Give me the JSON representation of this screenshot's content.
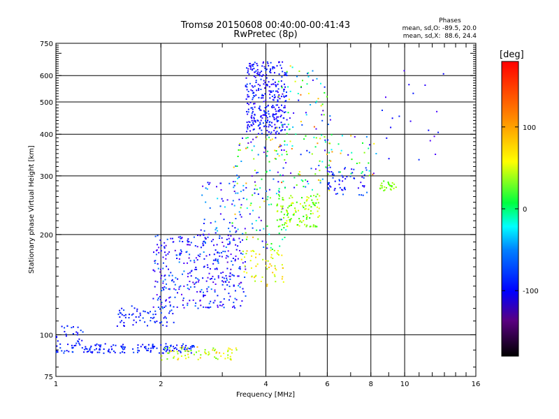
{
  "chart_data": {
    "type": "scatter",
    "title": "Tromsø 20150608 00:40:00-00:41:43",
    "subtitle": "RwPretec (8p)",
    "xlabel": "Frequency [MHz]",
    "ylabel": "Stationary phase Virtual Height [km]",
    "x_scale": "log",
    "y_scale": "log",
    "xlim": [
      1,
      16
    ],
    "ylim": [
      75,
      750
    ],
    "x_ticks": [
      1,
      2,
      4,
      6,
      8,
      10,
      16
    ],
    "y_ticks": [
      75,
      100,
      200,
      300,
      400,
      500,
      600,
      750
    ],
    "grid": true,
    "stats": {
      "title": "Phases",
      "line_o": "mean, sd,O: -89.5, 20.0",
      "line_x": "mean, sd,X:  88.6, 24.4"
    },
    "colorbar": {
      "label": "[deg]",
      "range": [
        -180,
        180
      ],
      "ticks": [
        "100",
        "0",
        "-100"
      ],
      "tick_values": [
        100,
        0,
        -100
      ],
      "colormap": "rainbow"
    },
    "clusters": [
      {
        "name": "",
        "x": [
          1.0,
          2.5
        ],
        "y": [
          88,
          94
        ],
        "phase": [
          -110,
          -80
        ],
        "n": 160
      },
      {
        "name": "",
        "x": [
          1.0,
          1.2
        ],
        "y": [
          94,
          108
        ],
        "phase": [
          -110,
          -80
        ],
        "n": 25
      },
      {
        "name": "",
        "x": [
          2.0,
          3.3
        ],
        "y": [
          84,
          92
        ],
        "phase": [
          60,
          130
        ],
        "n": 70
      },
      {
        "name": "",
        "x": [
          1.5,
          2.2
        ],
        "y": [
          106,
          122
        ],
        "phase": [
          -110,
          -80
        ],
        "n": 70
      },
      {
        "name": "",
        "x": [
          1.9,
          3.5
        ],
        "y": [
          120,
          200
        ],
        "phase": [
          -150,
          -60
        ],
        "n": 380
      },
      {
        "name": "",
        "x": [
          2.6,
          3.5
        ],
        "y": [
          200,
          290
        ],
        "phase": [
          -150,
          -40
        ],
        "n": 60
      },
      {
        "name": "",
        "x": [
          3.4,
          4.5
        ],
        "y": [
          140,
          180
        ],
        "phase": [
          80,
          130
        ],
        "n": 60
      },
      {
        "name": "",
        "x": [
          3.2,
          4.6
        ],
        "y": [
          180,
          400
        ],
        "phase": [
          -150,
          140
        ],
        "n": 140
      },
      {
        "name": "",
        "x": [
          3.5,
          4.6
        ],
        "y": [
          400,
          660
        ],
        "phase": [
          -130,
          -80
        ],
        "n": 340
      },
      {
        "name": "",
        "x": [
          4.3,
          5.7
        ],
        "y": [
          210,
          265
        ],
        "phase": [
          40,
          110
        ],
        "n": 120
      },
      {
        "name": "",
        "x": [
          4.3,
          6.2
        ],
        "y": [
          270,
          650
        ],
        "phase": [
          -160,
          160
        ],
        "n": 120
      },
      {
        "name": "",
        "x": [
          6.0,
          7.8
        ],
        "y": [
          260,
          320
        ],
        "phase": [
          -130,
          -70
        ],
        "n": 60
      },
      {
        "name": "",
        "x": [
          5.5,
          8.5
        ],
        "y": [
          300,
          400
        ],
        "phase": [
          -150,
          150
        ],
        "n": 40
      },
      {
        "name": "",
        "x": [
          8.5,
          9.5
        ],
        "y": [
          270,
          290
        ],
        "phase": [
          50,
          90
        ],
        "n": 25
      },
      {
        "name": "",
        "x": [
          8.5,
          13
        ],
        "y": [
          330,
          650
        ],
        "phase": [
          -140,
          -90
        ],
        "n": 20
      }
    ]
  }
}
